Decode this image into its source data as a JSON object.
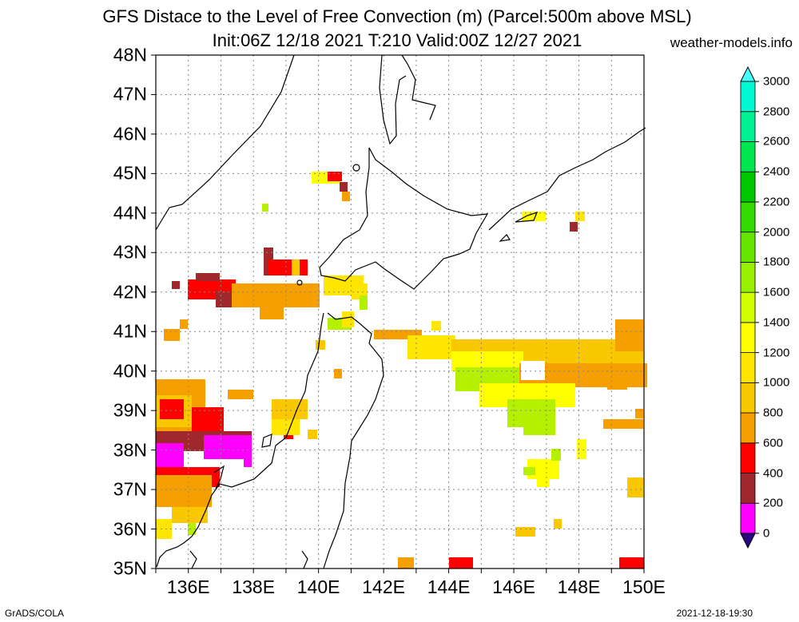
{
  "title": {
    "line1": "GFS Distace to the Level of Free Convection (m) (Parcel:500m above MSL)",
    "line2": "Init:06Z 12/18 2021 T:210 Valid:00Z 12/27 2021"
  },
  "credit": "weather-models.info",
  "footer": {
    "left": "GrADS/COLA",
    "right": "2021-12-18-19:30"
  },
  "axes": {
    "lat_labels": [
      "35N",
      "36N",
      "37N",
      "38N",
      "39N",
      "40N",
      "41N",
      "42N",
      "43N",
      "44N",
      "45N",
      "46N",
      "47N",
      "48N"
    ],
    "lon_labels": [
      "136E",
      "138E",
      "140E",
      "142E",
      "144E",
      "146E",
      "148E",
      "150E"
    ]
  },
  "colorbar": {
    "labels": [
      "0",
      "200",
      "400",
      "600",
      "800",
      "1000",
      "1200",
      "1400",
      "1600",
      "1800",
      "2000",
      "2200",
      "2400",
      "2600",
      "2800",
      "3000"
    ],
    "colors": [
      "#2a0a82",
      "#ff00ff",
      "#a0282d",
      "#ff0000",
      "#f5a000",
      "#fac800",
      "#ffe600",
      "#ffff00",
      "#d2ff00",
      "#96f000",
      "#64e600",
      "#32dc00",
      "#00c800",
      "#00e650",
      "#00f096",
      "#00fad2",
      "#46ffff"
    ]
  },
  "map": {
    "lon_range": [
      135,
      150
    ],
    "lat_range": [
      35,
      48
    ],
    "grid_step_lon": 1,
    "grid_step_lat": 1
  }
}
